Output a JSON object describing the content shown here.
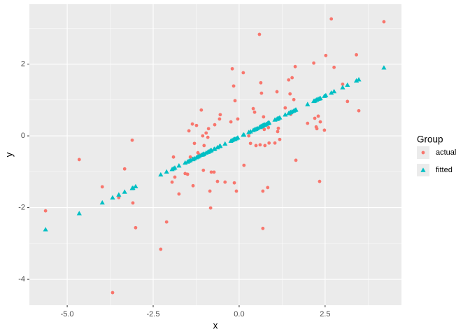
{
  "chart_data": {
    "type": "scatter",
    "x_label": "x",
    "y_label": "y",
    "legend_title": "Group",
    "xlim": [
      -6.1,
      4.72
    ],
    "ylim": [
      -4.72,
      3.67
    ],
    "xticks": [
      {
        "value": -5,
        "label": "-5.0"
      },
      -2.5,
      {
        "value": 0,
        "label": "0.0"
      },
      2.5
    ],
    "yticks": [
      -4,
      -2,
      0,
      2
    ],
    "grid": true,
    "legend": "right",
    "x": [
      -5.63,
      -4.65,
      -3.98,
      -3.68,
      -3.5,
      -3.33,
      -3.11,
      -3.09,
      -3.01,
      -2.28,
      -2.11,
      -1.95,
      -1.91,
      -1.87,
      -1.75,
      -1.57,
      -1.5,
      -1.46,
      -1.42,
      -1.36,
      -1.34,
      -1.3,
      -1.24,
      -1.2,
      -1.16,
      -1.1,
      -1.06,
      -1.04,
      -1.02,
      -0.96,
      -0.91,
      -0.89,
      -0.85,
      -0.83,
      -0.81,
      -0.73,
      -0.71,
      -0.63,
      -0.57,
      -0.55,
      -0.41,
      -0.24,
      -0.2,
      -0.16,
      -0.14,
      -0.12,
      -0.08,
      -0.04,
      0.12,
      0.14,
      0.28,
      0.33,
      0.41,
      0.45,
      0.49,
      0.53,
      0.59,
      0.61,
      0.63,
      0.65,
      0.67,
      0.69,
      0.69,
      0.71,
      0.73,
      0.75,
      0.79,
      0.83,
      0.85,
      0.87,
      1.04,
      1.1,
      1.12,
      1.14,
      1.18,
      1.34,
      1.44,
      1.48,
      1.5,
      1.54,
      1.59,
      1.63,
      1.65,
      1.99,
      2.17,
      2.2,
      2.24,
      2.26,
      2.3,
      2.34,
      2.36,
      2.48,
      2.52,
      2.68,
      2.76,
      3.01,
      3.15,
      3.41,
      3.48,
      4.21
    ],
    "series": [
      {
        "name": "actual",
        "color": "#F8766D",
        "shape": "circle",
        "values": [
          -2.09,
          -0.66,
          -1.42,
          -4.37,
          -1.72,
          -0.92,
          -0.12,
          -1.87,
          -2.56,
          -3.16,
          -2.4,
          -1.29,
          -0.59,
          -1.15,
          -1.62,
          -1.05,
          -1.07,
          0.14,
          -0.59,
          0.33,
          -1.39,
          -0.21,
          0.29,
          -0.47,
          -0.53,
          0.72,
          0.0,
          -0.96,
          -0.27,
          0.08,
          -0.04,
          0.2,
          -1.54,
          -2.01,
          -1.01,
          -1.01,
          0.31,
          -1.27,
          0.47,
          0.59,
          -1.29,
          0.39,
          1.87,
          1.39,
          -1.31,
          0.98,
          -1.54,
          0.47,
          1.76,
          -0.82,
          0.0,
          -0.21,
          0.76,
          0.66,
          -0.27,
          0.21,
          2.83,
          -0.25,
          1.48,
          1.19,
          0.27,
          -1.54,
          -2.58,
          0.53,
          0.18,
          -0.27,
          0.31,
          -1.44,
          0.23,
          -0.2,
          -0.2,
          1.23,
          0.12,
          0.21,
          -0.1,
          0.78,
          1.56,
          1.17,
          0.6,
          1.62,
          1.01,
          1.93,
          -0.68,
          0.35,
          2.03,
          0.49,
          0.25,
          0.2,
          0.55,
          -1.27,
          0.39,
          0.16,
          2.24,
          3.26,
          1.91,
          1.44,
          0.96,
          2.26,
          0.7,
          3.18
        ]
      },
      {
        "name": "fitted",
        "color": "#00BFC4",
        "shape": "triangle",
        "values": [
          -2.61,
          -2.16,
          -1.86,
          -1.72,
          -1.64,
          -1.56,
          -1.46,
          -1.45,
          -1.41,
          -1.08,
          -1.0,
          -0.93,
          -0.91,
          -0.89,
          -0.83,
          -0.75,
          -0.72,
          -0.7,
          -0.68,
          -0.65,
          -0.65,
          -0.63,
          -0.6,
          -0.58,
          -0.56,
          -0.53,
          -0.52,
          -0.51,
          -0.5,
          -0.47,
          -0.45,
          -0.44,
          -0.42,
          -0.41,
          -0.4,
          -0.37,
          -0.36,
          -0.32,
          -0.29,
          -0.28,
          -0.22,
          -0.14,
          -0.12,
          -0.1,
          -0.09,
          -0.09,
          -0.07,
          -0.05,
          0.03,
          0.03,
          0.1,
          0.12,
          0.16,
          0.18,
          0.19,
          0.21,
          0.24,
          0.25,
          0.26,
          0.27,
          0.28,
          0.29,
          0.29,
          0.3,
          0.31,
          0.31,
          0.33,
          0.35,
          0.36,
          0.37,
          0.45,
          0.47,
          0.48,
          0.49,
          0.51,
          0.59,
          0.63,
          0.65,
          0.66,
          0.68,
          0.7,
          0.72,
          0.73,
          0.88,
          0.97,
          0.98,
          1.0,
          1.01,
          1.03,
          1.04,
          1.05,
          1.11,
          1.13,
          1.2,
          1.24,
          1.35,
          1.42,
          1.54,
          1.57,
          1.9
        ]
      }
    ]
  }
}
